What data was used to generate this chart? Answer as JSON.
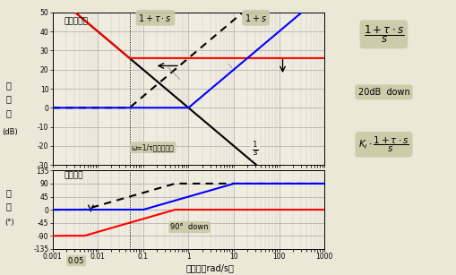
{
  "freq_range": [
    0.001,
    1000
  ],
  "gain_ylim": [
    -30,
    50
  ],
  "gain_yticks": [
    -30,
    -20,
    -10,
    0,
    10,
    20,
    30,
    40,
    50
  ],
  "phase_ylim": [
    -135,
    135
  ],
  "phase_yticks": [
    -135,
    -90,
    -45,
    0,
    45,
    90,
    135
  ],
  "xlabel": "周波数（rad/s）",
  "gain_ylabel_lines": [
    "ゲ",
    "イ",
    "ン",
    "(゙B)"
  ],
  "phase_ylabel_lines": [
    "位",
    "相",
    "(°)"
  ],
  "tau": 20,
  "bg_color": "#ebe8d8",
  "plot_bg": "#f0ede0",
  "grid_color": "#aaaaaa",
  "ann_bg": "#ccc9a8",
  "gain_label": "ゲイン特性",
  "phase_label": "位相特性",
  "shift_label": "ω=1/τに平行移動",
  "down90_label": "90°  down",
  "down20_label": "20dB  down",
  "freq_label": "0.05"
}
